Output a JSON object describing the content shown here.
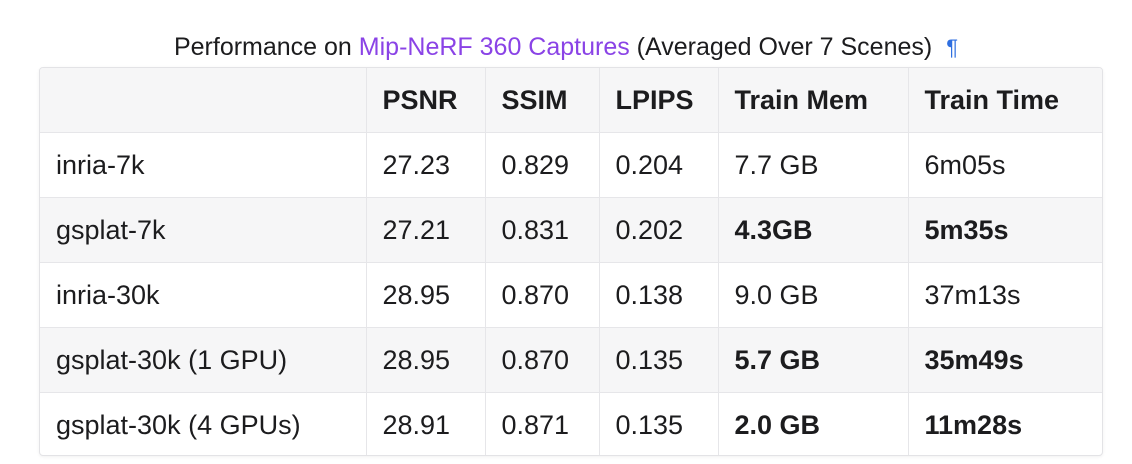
{
  "caption": {
    "prefix": "Performance on ",
    "link": "Mip-NeRF 360 Captures",
    "suffix": " (Averaged Over 7 Scenes)",
    "anchor": "¶"
  },
  "table": {
    "headers": [
      "",
      "PSNR",
      "SSIM",
      "LPIPS",
      "Train Mem",
      "Train Time"
    ],
    "rows": [
      [
        "inria-7k",
        "27.23",
        "0.829",
        "0.204",
        "7.7 GB",
        "6m05s"
      ],
      [
        "gsplat-7k",
        "27.21",
        "0.831",
        "0.202",
        "4.3GB",
        "5m35s"
      ],
      [
        "inria-30k",
        "28.95",
        "0.870",
        "0.138",
        "9.0 GB",
        "37m13s"
      ],
      [
        "gsplat-30k (1 GPU)",
        "28.95",
        "0.870",
        "0.135",
        "5.7 GB",
        "35m49s"
      ],
      [
        "gsplat-30k (4 GPUs)",
        "28.91",
        "0.871",
        "0.135",
        "2.0 GB",
        "11m28s"
      ]
    ]
  },
  "colors": {
    "link": "#8a43e6",
    "anchor": "#2f6fe0",
    "stripe": "#f6f6f7"
  }
}
